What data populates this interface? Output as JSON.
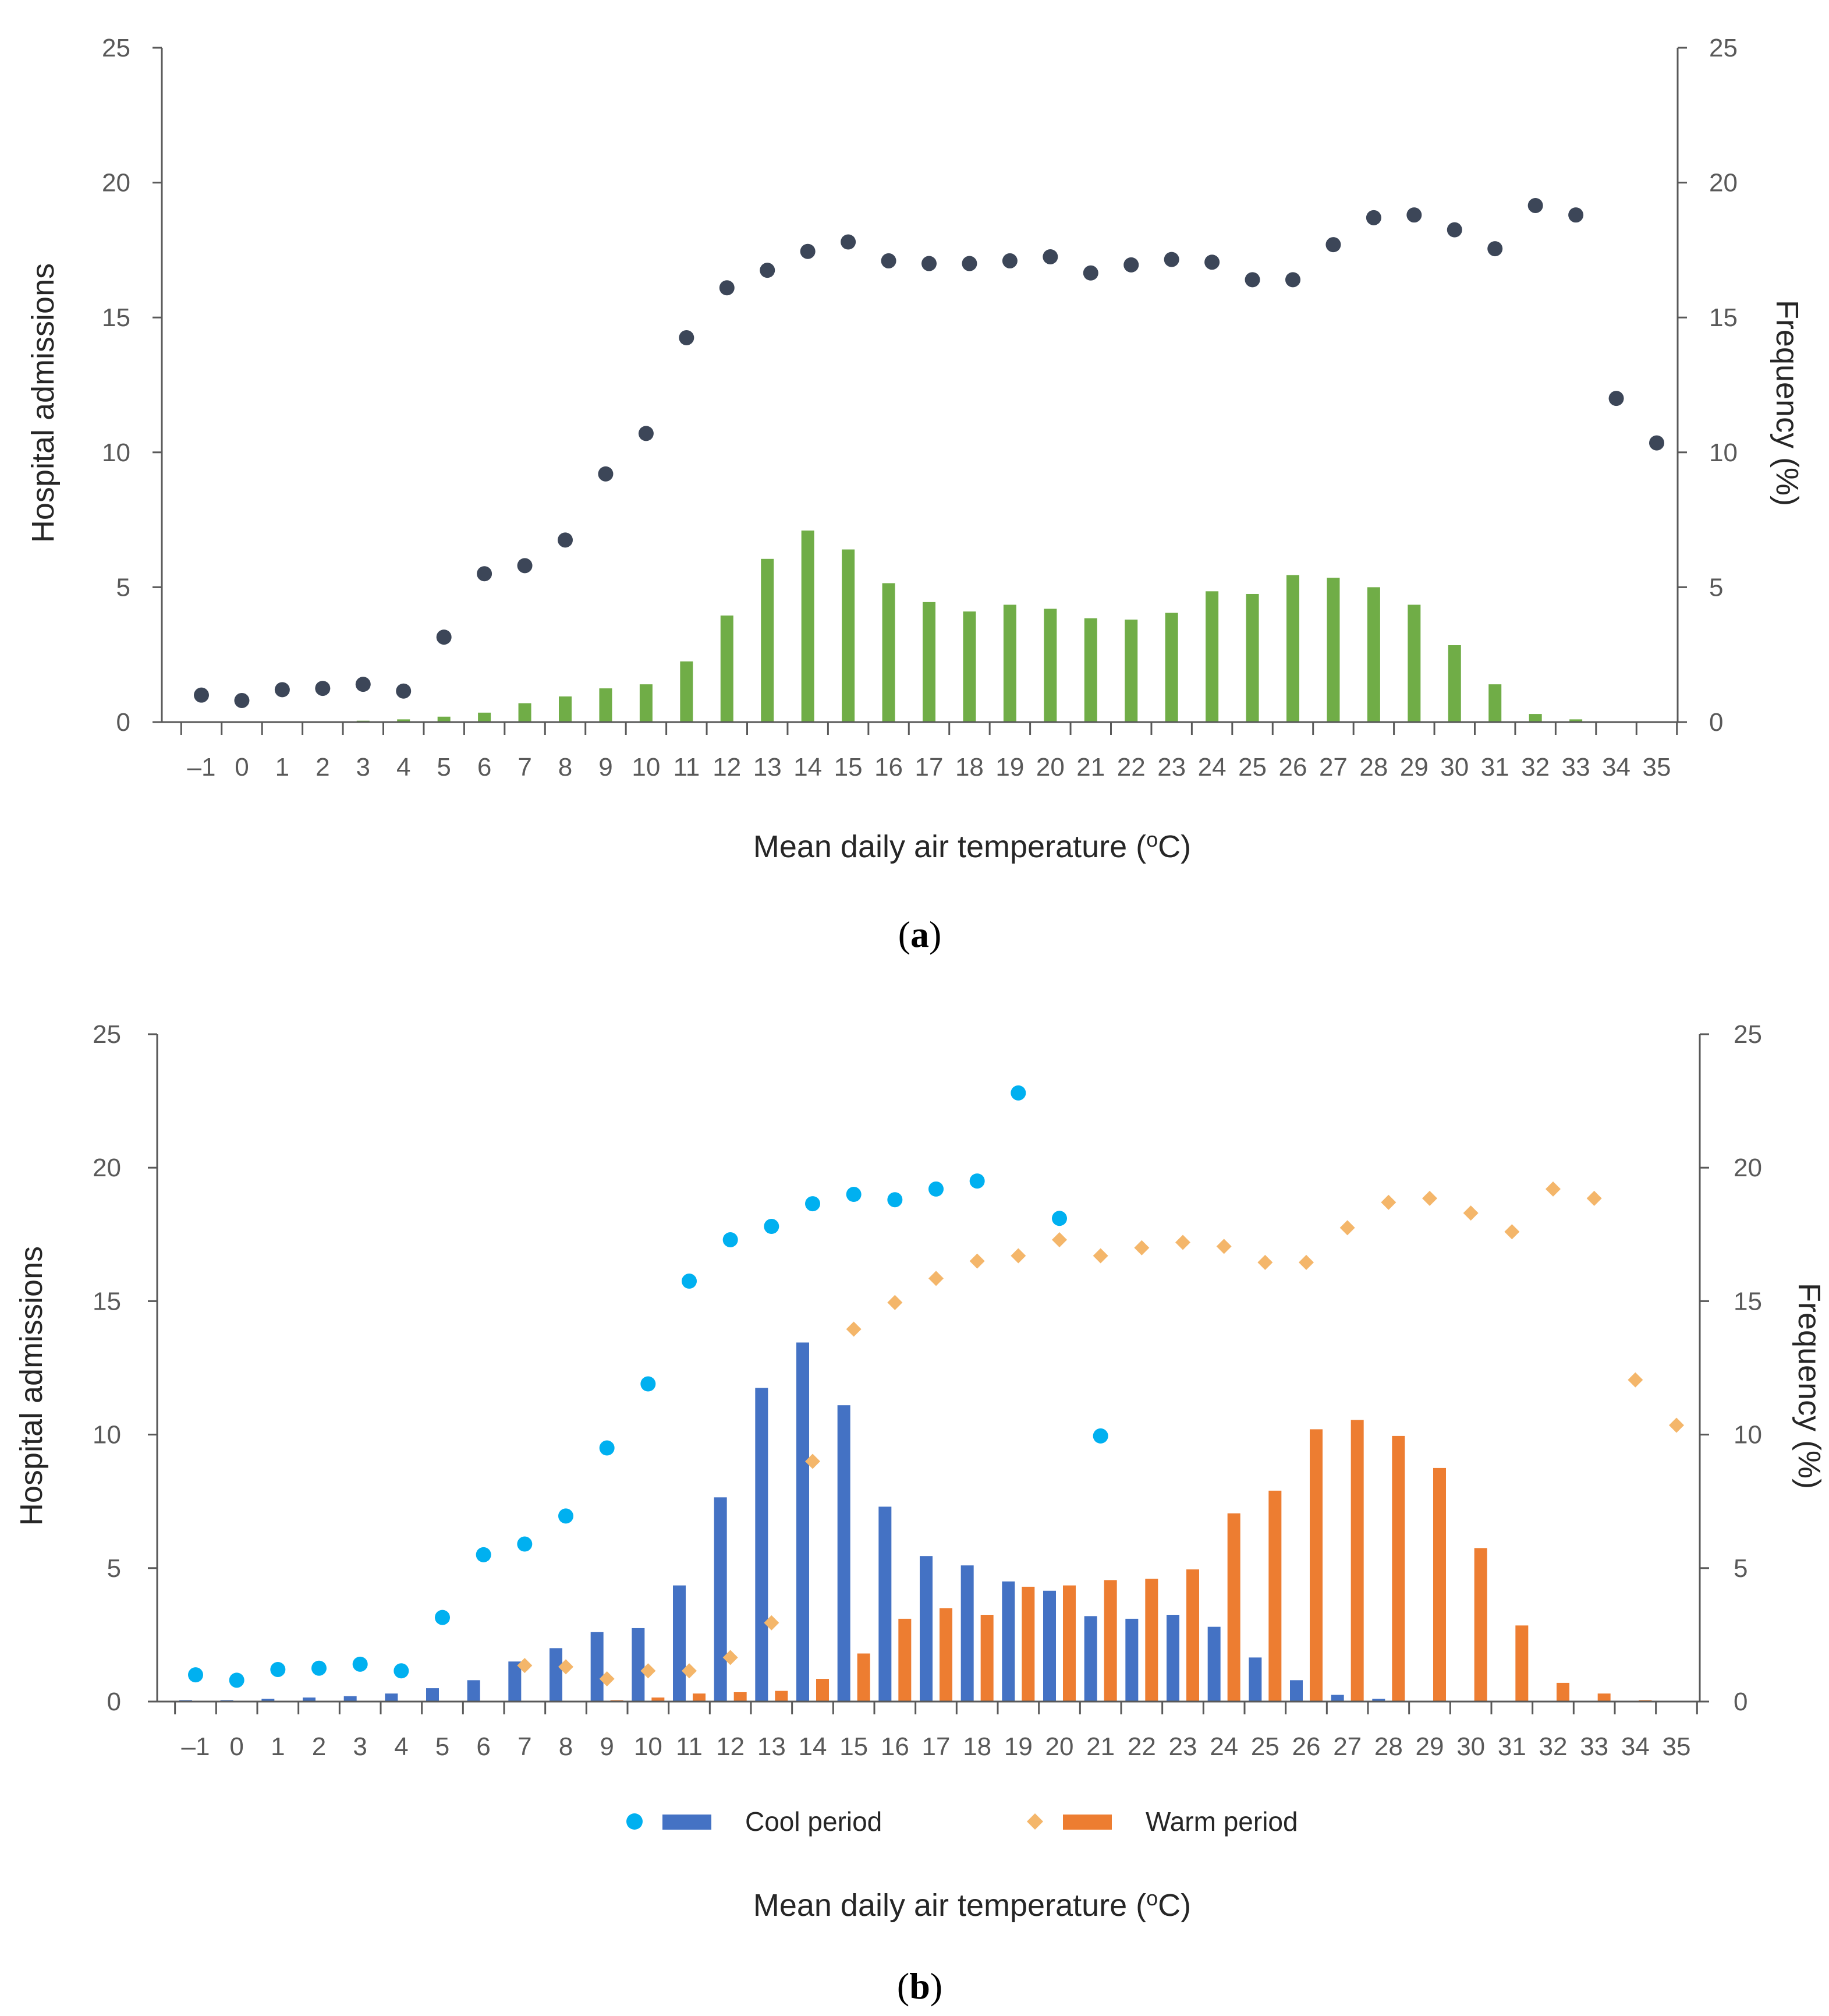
{
  "colors": {
    "axis": "#595959",
    "panel_a_dots": "#3c4658",
    "panel_a_bars": "#70ad47",
    "cool": "#4472c4",
    "cool_dots": "#00b0f0",
    "warm": "#ed7d31",
    "warm_dots": "#f4b66a"
  },
  "chart_data": [
    {
      "panel": "(a)",
      "panel_prefix": "(",
      "panel_letter": "a",
      "panel_suffix": ")",
      "type": "bar",
      "xlabel_prefix": "Mean daily air temperature (",
      "xlabel_sup": "o",
      "xlabel_suffix": "C)",
      "ylabel_left": "Hospital admissions",
      "ylabel_right": "Frequency (%)",
      "ylim_left": [
        0,
        25
      ],
      "ylim_right": [
        0,
        25
      ],
      "yticks": [
        0,
        5,
        10,
        15,
        20,
        25
      ],
      "categories": [
        "–1",
        "0",
        "1",
        "2",
        "3",
        "4",
        "5",
        "6",
        "7",
        "8",
        "9",
        "10",
        "11",
        "12",
        "13",
        "14",
        "15",
        "16",
        "17",
        "18",
        "19",
        "20",
        "21",
        "22",
        "23",
        "24",
        "25",
        "26",
        "27",
        "28",
        "29",
        "30",
        "31",
        "32",
        "33",
        "34",
        "35"
      ],
      "series": [
        {
          "name": "Hospital admissions",
          "kind": "dots",
          "axis": "left",
          "values": [
            1.0,
            0.8,
            1.2,
            1.25,
            1.4,
            1.15,
            3.15,
            5.5,
            5.8,
            6.75,
            9.2,
            10.7,
            14.25,
            16.1,
            16.75,
            17.45,
            17.8,
            17.1,
            17.0,
            17.0,
            17.1,
            17.25,
            16.65,
            16.95,
            17.15,
            17.05,
            16.4,
            16.4,
            17.7,
            18.7,
            18.8,
            18.25,
            17.55,
            19.15,
            18.8,
            12.0,
            10.35
          ]
        },
        {
          "name": "Frequency (%)",
          "kind": "bars",
          "axis": "right",
          "values": [
            0,
            0,
            0,
            0,
            0.05,
            0.1,
            0.2,
            0.35,
            0.7,
            0.95,
            1.25,
            1.4,
            2.25,
            3.95,
            6.05,
            7.1,
            6.4,
            5.15,
            4.45,
            4.1,
            4.35,
            4.2,
            3.85,
            3.8,
            4.05,
            4.85,
            4.75,
            5.45,
            5.35,
            5.0,
            4.35,
            2.85,
            1.4,
            0.3,
            0.1,
            0,
            0
          ]
        }
      ]
    },
    {
      "panel": "(b)",
      "panel_prefix": "(",
      "panel_letter": "b",
      "panel_suffix": ")",
      "type": "bar",
      "xlabel_prefix": "Mean daily air temperature (",
      "xlabel_sup": "o",
      "xlabel_suffix": "C)",
      "ylabel_left": "Hospital admissions",
      "ylabel_right": "Frequency (%)",
      "ylim_left": [
        0,
        25
      ],
      "ylim_right": [
        0,
        25
      ],
      "yticks": [
        0,
        5,
        10,
        15,
        20,
        25
      ],
      "categories": [
        "–1",
        "0",
        "1",
        "2",
        "3",
        "4",
        "5",
        "6",
        "7",
        "8",
        "9",
        "10",
        "11",
        "12",
        "13",
        "14",
        "15",
        "16",
        "17",
        "18",
        "19",
        "20",
        "21",
        "22",
        "23",
        "24",
        "25",
        "26",
        "27",
        "28",
        "29",
        "30",
        "31",
        "32",
        "33",
        "34",
        "35"
      ],
      "legend": [
        {
          "label": "Cool period",
          "dots_color": "#00b0f0",
          "bar_color": "#4472c4"
        },
        {
          "label": "Warm period",
          "dots_color": "#f4b66a",
          "bar_color": "#ed7d31"
        }
      ],
      "series": [
        {
          "name": "Cool period admissions",
          "kind": "dots",
          "axis": "left",
          "values": [
            1.0,
            0.8,
            1.2,
            1.25,
            1.4,
            1.15,
            3.15,
            5.5,
            5.9,
            6.95,
            9.5,
            11.9,
            15.75,
            17.3,
            17.8,
            18.65,
            19.0,
            18.8,
            19.2,
            19.5,
            22.8,
            18.1,
            9.95,
            null,
            null,
            null,
            null,
            null,
            null,
            null,
            null,
            null,
            null,
            null,
            null,
            null,
            null
          ]
        },
        {
          "name": "Warm period admissions",
          "kind": "diamonds",
          "axis": "left",
          "values": [
            null,
            null,
            null,
            null,
            null,
            null,
            null,
            null,
            1.35,
            1.3,
            0.85,
            1.15,
            1.15,
            1.65,
            2.95,
            9.0,
            13.95,
            14.95,
            15.85,
            16.5,
            16.7,
            17.3,
            16.7,
            17.0,
            17.2,
            17.05,
            16.45,
            16.45,
            17.75,
            18.7,
            18.85,
            18.3,
            17.6,
            19.2,
            18.85,
            12.05,
            10.35
          ]
        },
        {
          "name": "Cool period frequency",
          "kind": "bars",
          "axis": "right",
          "values": [
            0.05,
            0.05,
            0.1,
            0.15,
            0.2,
            0.3,
            0.5,
            0.8,
            1.5,
            2.0,
            2.6,
            2.75,
            4.35,
            7.65,
            11.75,
            13.45,
            11.1,
            7.3,
            5.45,
            5.1,
            4.5,
            4.15,
            3.2,
            3.1,
            3.25,
            2.8,
            1.65,
            0.8,
            0.25,
            0.1,
            0,
            0,
            0,
            0,
            0,
            0,
            0
          ]
        },
        {
          "name": "Warm period frequency",
          "kind": "bars",
          "axis": "right",
          "values": [
            0,
            0,
            0,
            0,
            0,
            0,
            0,
            0,
            0,
            0,
            0.05,
            0.15,
            0.3,
            0.35,
            0.4,
            0.85,
            1.8,
            3.1,
            3.5,
            3.25,
            4.3,
            4.35,
            4.55,
            4.6,
            4.95,
            7.05,
            7.9,
            10.2,
            10.55,
            9.95,
            8.75,
            5.75,
            2.85,
            0.7,
            0.3,
            0.05,
            0
          ]
        }
      ]
    }
  ]
}
